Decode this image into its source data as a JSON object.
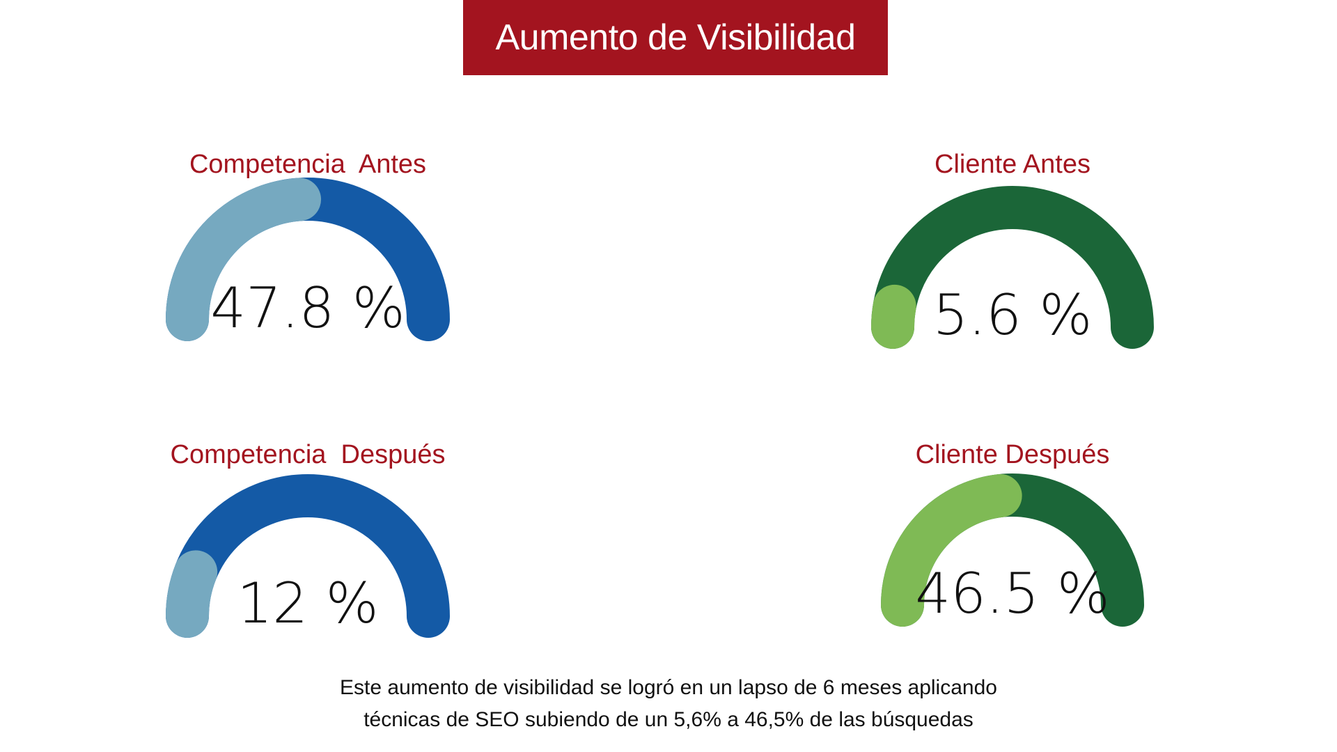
{
  "title": "Aumento de Visibilidad",
  "colors": {
    "banner": "#a3141f",
    "label": "#a3141f",
    "blue_track": "#145aa6",
    "blue_fill": "#76a9c0",
    "green_track": "#1b6638",
    "green_fill": "#7fba55"
  },
  "chart_data": {
    "type": "gauge",
    "unit": "%",
    "gauges": [
      {
        "label": "Competencia  Antes",
        "value_text": "47.8 %",
        "value": 47.8,
        "theme": "blue"
      },
      {
        "label": "Cliente Antes",
        "value_text": "5.6 %",
        "value": 5.6,
        "theme": "green"
      },
      {
        "label": "Competencia  Después",
        "value_text": "12 %",
        "value": 12,
        "theme": "blue"
      },
      {
        "label": "Cliente Después",
        "value_text": "46.5 %",
        "value": 46.5,
        "theme": "green"
      }
    ]
  },
  "caption": {
    "line1": "Este aumento de visibilidad se logró en un lapso de 6 meses aplicando",
    "line2": "técnicas de SEO subiendo de un 5,6% a 46,5% de las búsquedas"
  }
}
